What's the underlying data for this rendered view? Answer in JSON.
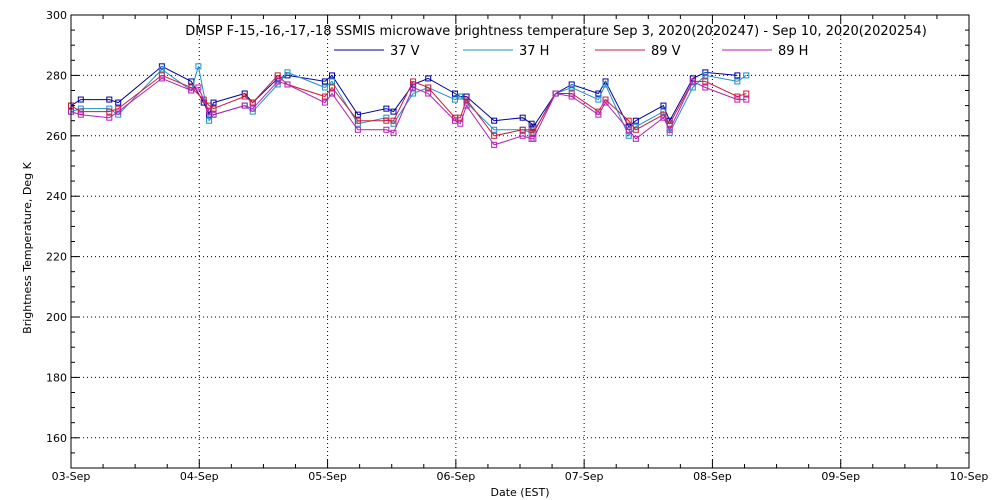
{
  "chart_data": {
    "type": "line",
    "title": "DMSP F-15,-16,-17,-18 SSMIS microwave brightness temperature Sep  3, 2020(2020247) - Sep 10, 2020(2020254)",
    "xlabel": "Date (EST)",
    "ylabel": "Brightness Temperature, Deg K",
    "xlim": [
      "2020-09-03",
      "2020-09-10"
    ],
    "ylim": [
      150,
      300
    ],
    "x_ticks": [
      "03-Sep",
      "04-Sep",
      "05-Sep",
      "06-Sep",
      "07-Sep",
      "08-Sep",
      "09-Sep",
      "10-Sep"
    ],
    "y_ticks": [
      160,
      180,
      200,
      220,
      240,
      260,
      280,
      300
    ],
    "grid": true,
    "legend_position": "top",
    "series": [
      {
        "name": "37 V",
        "color": "#0000a0",
        "points": [
          [
            "2020-09-03 00:00",
            270
          ],
          [
            "2020-09-03 01:50",
            272
          ],
          [
            "2020-09-03 07:10",
            272
          ],
          [
            "2020-09-03 08:50",
            271
          ],
          [
            "2020-09-03 17:00",
            283
          ],
          [
            "2020-09-03 22:30",
            278
          ],
          [
            "2020-09-04 00:50",
            271
          ],
          [
            "2020-09-04 01:50",
            267
          ],
          [
            "2020-09-04 02:40",
            271
          ],
          [
            "2020-09-04 08:30",
            274
          ],
          [
            "2020-09-04 10:00",
            271
          ],
          [
            "2020-09-04 14:40",
            279
          ],
          [
            "2020-09-04 16:30",
            280
          ],
          [
            "2020-09-04 23:30",
            278
          ],
          [
            "2020-09-05 00:50",
            280
          ],
          [
            "2020-09-05 05:40",
            267
          ],
          [
            "2020-09-05 11:00",
            269
          ],
          [
            "2020-09-05 12:20",
            268
          ],
          [
            "2020-09-05 16:00",
            277
          ],
          [
            "2020-09-05 18:50",
            279
          ],
          [
            "2020-09-05 23:50",
            274
          ],
          [
            "2020-09-06 00:50",
            273
          ],
          [
            "2020-09-06 02:00",
            273
          ],
          [
            "2020-09-06 07:10",
            265
          ],
          [
            "2020-09-06 12:30",
            266
          ],
          [
            "2020-09-06 14:10",
            264
          ],
          [
            "2020-09-06 14:30",
            263
          ],
          [
            "2020-09-06 18:40",
            274
          ],
          [
            "2020-09-06 21:40",
            277
          ],
          [
            "2020-09-07 02:40",
            274
          ],
          [
            "2020-09-07 04:00",
            278
          ],
          [
            "2020-09-07 08:20",
            263
          ],
          [
            "2020-09-07 09:40",
            265
          ],
          [
            "2020-09-07 14:50",
            270
          ],
          [
            "2020-09-07 16:00",
            265
          ],
          [
            "2020-09-07 20:20",
            279
          ],
          [
            "2020-09-07 22:40",
            281
          ],
          [
            "2020-09-08 04:40",
            280
          ]
        ]
      },
      {
        "name": "37 H",
        "color": "#1e90c8",
        "points": [
          [
            "2020-09-03 00:00",
            268
          ],
          [
            "2020-09-03 01:50",
            269
          ],
          [
            "2020-09-03 07:10",
            269
          ],
          [
            "2020-09-03 08:50",
            267
          ],
          [
            "2020-09-03 17:00",
            282
          ],
          [
            "2020-09-03 22:30",
            275
          ],
          [
            "2020-09-03 23:50",
            283
          ],
          [
            "2020-09-04 01:50",
            265
          ],
          [
            "2020-09-04 02:40",
            267
          ],
          [
            "2020-09-04 08:30",
            270
          ],
          [
            "2020-09-04 10:00",
            268
          ],
          [
            "2020-09-04 14:40",
            277
          ],
          [
            "2020-09-04 16:30",
            281
          ],
          [
            "2020-09-04 23:30",
            276
          ],
          [
            "2020-09-05 00:50",
            278
          ],
          [
            "2020-09-05 05:40",
            264
          ],
          [
            "2020-09-05 11:00",
            266
          ],
          [
            "2020-09-05 12:20",
            264
          ],
          [
            "2020-09-05 16:00",
            274
          ],
          [
            "2020-09-05 18:50",
            276
          ],
          [
            "2020-09-05 23:50",
            272
          ],
          [
            "2020-09-06 00:50",
            273
          ],
          [
            "2020-09-06 02:00",
            271
          ],
          [
            "2020-09-06 07:10",
            262
          ],
          [
            "2020-09-06 12:30",
            262
          ],
          [
            "2020-09-06 14:10",
            261
          ],
          [
            "2020-09-06 14:30",
            261
          ],
          [
            "2020-09-06 18:40",
            274
          ],
          [
            "2020-09-06 21:40",
            276
          ],
          [
            "2020-09-07 02:40",
            272
          ],
          [
            "2020-09-07 04:00",
            277
          ],
          [
            "2020-09-07 08:20",
            260
          ],
          [
            "2020-09-07 09:40",
            263
          ],
          [
            "2020-09-07 14:50",
            268
          ],
          [
            "2020-09-07 16:00",
            261
          ],
          [
            "2020-09-07 20:20",
            276
          ],
          [
            "2020-09-07 22:40",
            280
          ],
          [
            "2020-09-08 04:40",
            278
          ],
          [
            "2020-09-08 06:20",
            280
          ]
        ]
      },
      {
        "name": "89 V",
        "color": "#c81e3c",
        "points": [
          [
            "2020-09-03 00:00",
            270
          ],
          [
            "2020-09-03 01:50",
            268
          ],
          [
            "2020-09-03 07:10",
            268
          ],
          [
            "2020-09-03 08:50",
            269
          ],
          [
            "2020-09-03 17:00",
            280
          ],
          [
            "2020-09-03 22:30",
            276
          ],
          [
            "2020-09-04 00:50",
            272
          ],
          [
            "2020-09-04 01:50",
            270
          ],
          [
            "2020-09-04 02:40",
            269
          ],
          [
            "2020-09-04 08:30",
            273
          ],
          [
            "2020-09-04 10:00",
            271
          ],
          [
            "2020-09-04 14:40",
            280
          ],
          [
            "2020-09-04 16:30",
            277
          ],
          [
            "2020-09-04 23:30",
            273
          ],
          [
            "2020-09-05 00:50",
            276
          ],
          [
            "2020-09-05 05:40",
            265
          ],
          [
            "2020-09-05 11:00",
            265
          ],
          [
            "2020-09-05 12:20",
            265
          ],
          [
            "2020-09-05 16:00",
            278
          ],
          [
            "2020-09-05 18:50",
            276
          ],
          [
            "2020-09-05 23:50",
            266
          ],
          [
            "2020-09-06 00:50",
            266
          ],
          [
            "2020-09-06 02:00",
            272
          ],
          [
            "2020-09-06 07:10",
            260
          ],
          [
            "2020-09-06 12:30",
            262
          ],
          [
            "2020-09-06 14:10",
            262
          ],
          [
            "2020-09-06 14:30",
            261
          ],
          [
            "2020-09-06 18:40",
            274
          ],
          [
            "2020-09-06 21:40",
            274
          ],
          [
            "2020-09-07 02:40",
            268
          ],
          [
            "2020-09-07 04:00",
            272
          ],
          [
            "2020-09-07 08:20",
            265
          ],
          [
            "2020-09-07 09:40",
            262
          ],
          [
            "2020-09-07 14:50",
            267
          ],
          [
            "2020-09-07 16:00",
            264
          ],
          [
            "2020-09-07 20:20",
            278
          ],
          [
            "2020-09-07 22:40",
            278
          ],
          [
            "2020-09-08 04:40",
            273
          ],
          [
            "2020-09-08 06:20",
            274
          ]
        ]
      },
      {
        "name": "89 H",
        "color": "#b41eb4",
        "points": [
          [
            "2020-09-03 00:00",
            268
          ],
          [
            "2020-09-03 01:50",
            267
          ],
          [
            "2020-09-03 07:10",
            266
          ],
          [
            "2020-09-03 08:50",
            268
          ],
          [
            "2020-09-03 17:00",
            279
          ],
          [
            "2020-09-03 22:30",
            275
          ],
          [
            "2020-09-03 23:50",
            276
          ],
          [
            "2020-09-04 01:50",
            268
          ],
          [
            "2020-09-04 02:40",
            267
          ],
          [
            "2020-09-04 08:30",
            270
          ],
          [
            "2020-09-04 10:00",
            269
          ],
          [
            "2020-09-04 14:40",
            278
          ],
          [
            "2020-09-04 16:30",
            277
          ],
          [
            "2020-09-04 23:30",
            271
          ],
          [
            "2020-09-05 00:50",
            274
          ],
          [
            "2020-09-05 05:40",
            262
          ],
          [
            "2020-09-05 11:00",
            262
          ],
          [
            "2020-09-05 12:20",
            261
          ],
          [
            "2020-09-05 16:00",
            276
          ],
          [
            "2020-09-05 18:50",
            274
          ],
          [
            "2020-09-05 23:50",
            265
          ],
          [
            "2020-09-06 00:50",
            264
          ],
          [
            "2020-09-06 02:00",
            270
          ],
          [
            "2020-09-06 07:10",
            257
          ],
          [
            "2020-09-06 12:30",
            260
          ],
          [
            "2020-09-06 14:10",
            259
          ],
          [
            "2020-09-06 14:30",
            259
          ],
          [
            "2020-09-06 18:40",
            274
          ],
          [
            "2020-09-06 21:40",
            273
          ],
          [
            "2020-09-07 02:40",
            267
          ],
          [
            "2020-09-07 04:00",
            271
          ],
          [
            "2020-09-07 08:20",
            262
          ],
          [
            "2020-09-07 09:40",
            259
          ],
          [
            "2020-09-07 14:50",
            266
          ],
          [
            "2020-09-07 16:00",
            262
          ],
          [
            "2020-09-07 20:20",
            278
          ],
          [
            "2020-09-07 22:40",
            276
          ],
          [
            "2020-09-08 04:40",
            272
          ],
          [
            "2020-09-08 06:20",
            272
          ]
        ]
      }
    ]
  }
}
